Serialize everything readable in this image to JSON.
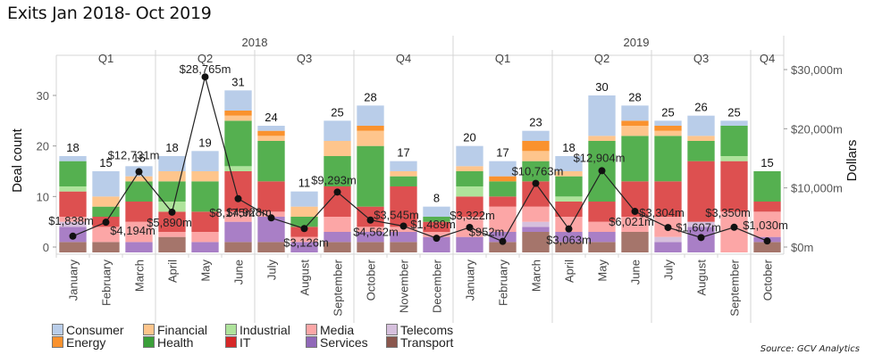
{
  "title": "Exits Jan 2018- Oct 2019",
  "source": "Source: GCV Analytics",
  "chart_data": {
    "type": "bar",
    "title": "Exits Jan 2018- Oct 2019",
    "xlabel": "",
    "ylabel": "Deal count",
    "y2label": "Dollars",
    "ylim": [
      0,
      35
    ],
    "y_ticks": [
      "0",
      "10",
      "20",
      "30"
    ],
    "y2lim": [
      0,
      35000
    ],
    "y2_ticks": [
      "$0m",
      "$10,000m",
      "$20,000m",
      "$30,000m"
    ],
    "years": [
      {
        "label": "2018",
        "quarters": [
          {
            "label": "Q1",
            "months": 3
          },
          {
            "label": "Q2",
            "months": 3
          },
          {
            "label": "Q3",
            "months": 3
          },
          {
            "label": "Q4",
            "months": 3
          }
        ]
      },
      {
        "label": "2019",
        "quarters": [
          {
            "label": "Q1",
            "months": 3
          },
          {
            "label": "Q2",
            "months": 3
          },
          {
            "label": "Q3",
            "months": 3
          },
          {
            "label": "Q4",
            "months": 1
          }
        ]
      }
    ],
    "categories": [
      "January",
      "February",
      "March",
      "April",
      "May",
      "June",
      "July",
      "August",
      "September",
      "October",
      "November",
      "December",
      "January",
      "February",
      "March",
      "April",
      "May",
      "June",
      "July",
      "August",
      "September",
      "October"
    ],
    "totals": [
      18,
      15,
      16,
      18,
      19,
      31,
      24,
      11,
      25,
      28,
      17,
      8,
      20,
      17,
      23,
      18,
      30,
      28,
      25,
      26,
      25,
      15
    ],
    "series": [
      {
        "name": "Transport",
        "color": "#a5756b",
        "values": [
          1,
          1,
          0,
          2,
          0,
          1,
          1,
          0,
          1,
          1,
          1,
          0,
          0,
          1,
          3,
          1,
          1,
          3,
          0,
          0,
          0,
          1
        ]
      },
      {
        "name": "Services",
        "color": "#a97fc6",
        "values": [
          3,
          0,
          1,
          0,
          1,
          4,
          5,
          1,
          2,
          2,
          2,
          2,
          2,
          2,
          1,
          2,
          2,
          0,
          1,
          4,
          0,
          1
        ]
      },
      {
        "name": "Telecoms",
        "color": "#d6c0dd",
        "values": [
          1,
          0,
          0,
          0,
          0,
          0,
          0,
          0,
          0,
          0,
          0,
          0,
          0,
          0,
          1,
          0,
          0,
          0,
          1,
          1,
          0,
          0
        ]
      },
      {
        "name": "Media",
        "color": "#fca6a6",
        "values": [
          1,
          3,
          4,
          1,
          2,
          2,
          1,
          1,
          3,
          1,
          1,
          1,
          4,
          5,
          3,
          3,
          2,
          3,
          4,
          0,
          7,
          5
        ]
      },
      {
        "name": "IT",
        "color": "#dd5050",
        "values": [
          5,
          2,
          4,
          4,
          4,
          8,
          6,
          2,
          6,
          4,
          8,
          2,
          4,
          2,
          5,
          3,
          4,
          7,
          7,
          12,
          10,
          2
        ]
      },
      {
        "name": "Industrial",
        "color": "#aee39b",
        "values": [
          1,
          0,
          0,
          2,
          0,
          1,
          0,
          0,
          0,
          0,
          0,
          0,
          2,
          0,
          0,
          1,
          0,
          0,
          0,
          0,
          1,
          0
        ]
      },
      {
        "name": "Health",
        "color": "#55b050",
        "values": [
          5,
          2,
          4,
          4,
          6,
          9,
          8,
          2,
          6,
          12,
          2,
          1,
          3,
          3,
          4,
          4,
          12,
          9,
          9,
          4,
          6,
          6
        ]
      },
      {
        "name": "Financial",
        "color": "#fec58c",
        "values": [
          0,
          2,
          1,
          2,
          2,
          1,
          1,
          2,
          3,
          3,
          1,
          0,
          1,
          0,
          2,
          1,
          1,
          2,
          1,
          1,
          0,
          0
        ]
      },
      {
        "name": "Energy",
        "color": "#fa922e",
        "values": [
          0,
          0,
          0,
          0,
          0,
          1,
          1,
          0,
          0,
          1,
          0,
          0,
          0,
          1,
          2,
          0,
          0,
          1,
          1,
          0,
          0,
          0
        ]
      },
      {
        "name": "Consumer",
        "color": "#b9cde9",
        "values": [
          1,
          5,
          2,
          3,
          4,
          4,
          1,
          3,
          4,
          4,
          2,
          2,
          4,
          3,
          2,
          3,
          8,
          3,
          1,
          4,
          1,
          0
        ]
      }
    ],
    "line": {
      "name": "Dollars",
      "values": [
        1838,
        4194,
        12731,
        5890,
        28765,
        8175,
        4928,
        3126,
        9293,
        4562,
        3545,
        1489,
        3322,
        952,
        10763,
        3063,
        12904,
        6021,
        3304,
        1607,
        3350,
        1030
      ],
      "labels": [
        "$1,838m",
        "$4,194m",
        "$12,731m",
        "$5,890m",
        "$28,765m",
        "$8,175m",
        "$4,928m",
        "$3,126m",
        "$9,293m",
        "$4,562m",
        "$3,545m",
        "$1,489m",
        "$3,322m",
        "$952m",
        "$10,763m",
        "$3,063m",
        "$12,904m",
        "$6,021m",
        "$3,304m",
        "$1,607m",
        "$3,350m",
        "$1,030m"
      ]
    },
    "legend": {
      "placement": "bottom-left",
      "rows": [
        [
          {
            "label": "Consumer",
            "color": "#b9cde9"
          },
          {
            "label": "Financial",
            "color": "#fec58c"
          },
          {
            "label": "Industrial",
            "color": "#aee39b"
          },
          {
            "label": "Media",
            "color": "#fca6a6"
          },
          {
            "label": "Telecoms",
            "color": "#d6c0dd"
          }
        ],
        [
          {
            "label": "Energy",
            "color": "#fa922e"
          },
          {
            "label": "Health",
            "color": "#3a9f39"
          },
          {
            "label": "IT",
            "color": "#d62828"
          },
          {
            "label": "Services",
            "color": "#9068b8"
          },
          {
            "label": "Transport",
            "color": "#8a574d"
          }
        ]
      ]
    },
    "grid": false
  }
}
